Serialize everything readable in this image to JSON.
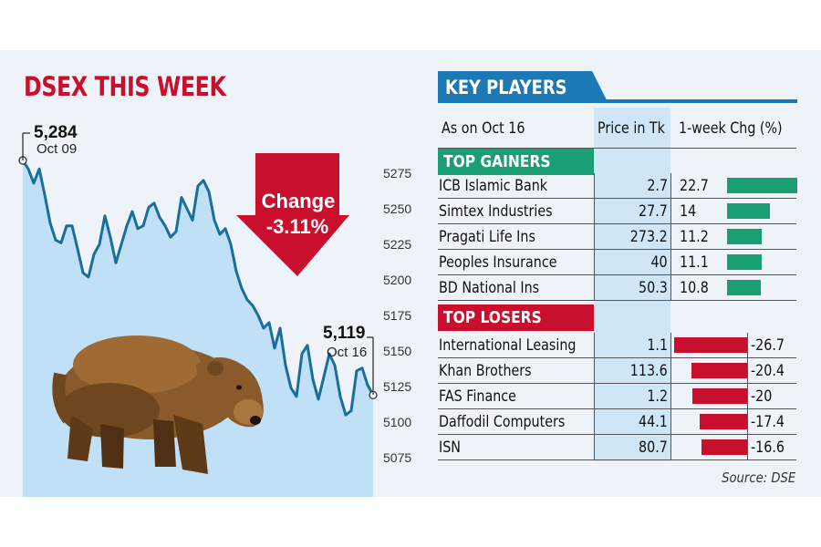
{
  "colors": {
    "title_red": "#c8102e",
    "line_blue": "#1a6e9a",
    "area_fill": "#bfe0f7",
    "gainers_green": "#1a9e74",
    "losers_red": "#c8102e",
    "key_players_blue": "#1c79b5"
  },
  "icons": {
    "bear": "bear-illustration",
    "change_arrow": "down-arrow"
  },
  "chart_data": {
    "type": "area",
    "title": "DSEX THIS WEEK",
    "y_ticks": [
      5275,
      5250,
      5225,
      5200,
      5175,
      5150,
      5125,
      5100,
      5075
    ],
    "ylim": [
      5055,
      5300
    ],
    "grid": false,
    "series": [
      {
        "values": [
          5284,
          5278,
          5268,
          5278,
          5260,
          5240,
          5228,
          5226,
          5238,
          5238,
          5222,
          5205,
          5202,
          5218,
          5225,
          5245,
          5230,
          5212,
          5225,
          5238,
          5248,
          5236,
          5238,
          5251,
          5254,
          5244,
          5238,
          5230,
          5234,
          5258,
          5250,
          5242,
          5266,
          5270,
          5262,
          5242,
          5232,
          5236,
          5225,
          5206,
          5194,
          5186,
          5182,
          5175,
          5166,
          5170,
          5152,
          5166,
          5140,
          5124,
          5118,
          5148,
          5154,
          5130,
          5116,
          5132,
          5148,
          5140,
          5118,
          5105,
          5108,
          5136,
          5138,
          5126,
          5119
        ]
      }
    ],
    "annotations": {
      "start": {
        "value": "5,284",
        "date": "Oct 09"
      },
      "end": {
        "value": "5,119",
        "date": "Oct 16"
      },
      "change_label": "Change",
      "change_value": "-3.11%"
    }
  },
  "key_players": {
    "title": "KEY PLAYERS",
    "as_on": "As on Oct 16",
    "col_price": "Price in Tk",
    "col_change": "1-week Chg (%)",
    "gainers_label": "TOP GAINERS",
    "losers_label": "TOP LOSERS",
    "gainers": [
      {
        "name": "ICB Islamic Bank",
        "price": "2.7",
        "change": "22.7",
        "change_value": 22.7
      },
      {
        "name": "Simtex Industries",
        "price": "27.7",
        "change": "14",
        "change_value": 14
      },
      {
        "name": "Pragati Life  Ins",
        "price": "273.2",
        "change": "11.2",
        "change_value": 11.2
      },
      {
        "name": "Peoples Insurance",
        "price": "40",
        "change": "11.1",
        "change_value": 11.1
      },
      {
        "name": "BD National Ins",
        "price": "50.3",
        "change": "10.8",
        "change_value": 10.8
      }
    ],
    "losers": [
      {
        "name": "International Leasing",
        "price": "1.1",
        "change": "-26.7",
        "change_value": -26.7
      },
      {
        "name": "Khan Brothers",
        "price": "113.6",
        "change": "-20.4",
        "change_value": -20.4
      },
      {
        "name": "FAS Finance",
        "price": "1.2",
        "change": "-20",
        "change_value": -20
      },
      {
        "name": "Daffodil Computers",
        "price": "44.1",
        "change": "-17.4",
        "change_value": -17.4
      },
      {
        "name": "ISN",
        "price": "80.7",
        "change": "-16.6",
        "change_value": -16.6
      }
    ],
    "source": "Source: DSE"
  }
}
